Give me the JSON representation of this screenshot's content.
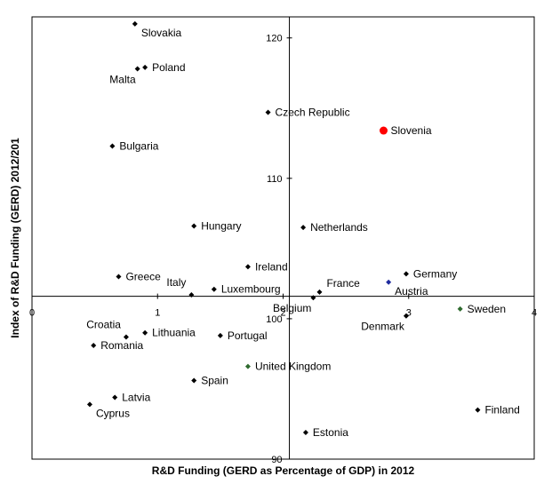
{
  "chart_data": {
    "type": "scatter",
    "title": "",
    "xlabel": "R&D Funding (GERD as Percentage of GDP) in 2012",
    "ylabel": "Index of R&D Funding (GERD) 2012/201",
    "xlim": [
      0,
      4
    ],
    "ylim": [
      90,
      121.5
    ],
    "x_ticks": [
      "0",
      "1",
      "2",
      "3",
      "4"
    ],
    "y_ticks": [
      "90",
      "100",
      "110",
      "120"
    ],
    "x_tick_values": [
      0,
      1,
      2,
      3,
      4
    ],
    "y_tick_values": [
      90,
      100,
      110,
      120
    ],
    "x_axis_crosses_y": 101.6,
    "y_axis_crosses_x": 2.05,
    "grid": false,
    "points": [
      {
        "label": "Slovakia",
        "x": 0.82,
        "y": 121.0,
        "color": "#000000",
        "label_pos": "below-right"
      },
      {
        "label": "Malta",
        "x": 0.84,
        "y": 117.8,
        "color": "#000000",
        "label_pos": "below-left"
      },
      {
        "label": "Poland",
        "x": 0.9,
        "y": 117.9,
        "color": "#000000",
        "label_pos": "right"
      },
      {
        "label": "Czech Republic",
        "x": 1.88,
        "y": 114.7,
        "color": "#000000",
        "label_pos": "right"
      },
      {
        "label": "Slovenia",
        "x": 2.8,
        "y": 113.4,
        "color": "#ff0000",
        "label_pos": "right",
        "highlight": true
      },
      {
        "label": "Bulgaria",
        "x": 0.64,
        "y": 112.3,
        "color": "#000000",
        "label_pos": "right"
      },
      {
        "label": "Hungary",
        "x": 1.29,
        "y": 106.6,
        "color": "#000000",
        "label_pos": "right"
      },
      {
        "label": "Netherlands",
        "x": 2.16,
        "y": 106.5,
        "color": "#000000",
        "label_pos": "right"
      },
      {
        "label": "Ireland",
        "x": 1.72,
        "y": 103.7,
        "color": "#000000",
        "label_pos": "right"
      },
      {
        "label": "Germany",
        "x": 2.98,
        "y": 103.2,
        "color": "#000000",
        "label_pos": "right"
      },
      {
        "label": "Greece",
        "x": 0.69,
        "y": 103.0,
        "color": "#000000",
        "label_pos": "right"
      },
      {
        "label": "Austria",
        "x": 2.84,
        "y": 102.6,
        "color": "#1f2b9e",
        "label_pos": "below-right"
      },
      {
        "label": "Luxembourg",
        "x": 1.45,
        "y": 102.1,
        "color": "#000000",
        "label_pos": "right"
      },
      {
        "label": "France",
        "x": 2.29,
        "y": 101.9,
        "color": "#000000",
        "label_pos": "above-right"
      },
      {
        "label": "Italy",
        "x": 1.27,
        "y": 101.7,
        "color": "#000000",
        "label_pos": "above-left"
      },
      {
        "label": "Belgium",
        "x": 2.24,
        "y": 101.5,
        "color": "#000000",
        "label_pos": "below-left"
      },
      {
        "label": "Sweden",
        "x": 3.41,
        "y": 100.7,
        "color": "#2e6b2e",
        "label_pos": "right"
      },
      {
        "label": "Denmark",
        "x": 2.98,
        "y": 100.2,
        "color": "#000000",
        "label_pos": "below-left"
      },
      {
        "label": "Croatia",
        "x": 0.75,
        "y": 98.7,
        "color": "#000000",
        "label_pos": "above-left"
      },
      {
        "label": "Lithuania",
        "x": 0.9,
        "y": 99.0,
        "color": "#000000",
        "label_pos": "right"
      },
      {
        "label": "Portugal",
        "x": 1.5,
        "y": 98.8,
        "color": "#000000",
        "label_pos": "right"
      },
      {
        "label": "Romania",
        "x": 0.49,
        "y": 98.1,
        "color": "#000000",
        "label_pos": "right"
      },
      {
        "label": "United Kingdom",
        "x": 1.72,
        "y": 96.6,
        "color": "#2e6b2e",
        "label_pos": "right"
      },
      {
        "label": "Spain",
        "x": 1.29,
        "y": 95.6,
        "color": "#000000",
        "label_pos": "right"
      },
      {
        "label": "Latvia",
        "x": 0.66,
        "y": 94.4,
        "color": "#000000",
        "label_pos": "right"
      },
      {
        "label": "Cyprus",
        "x": 0.46,
        "y": 93.9,
        "color": "#000000",
        "label_pos": "below-right"
      },
      {
        "label": "Finland",
        "x": 3.55,
        "y": 93.5,
        "color": "#000000",
        "label_pos": "right"
      },
      {
        "label": "Estonia",
        "x": 2.18,
        "y": 91.9,
        "color": "#000000",
        "label_pos": "right"
      }
    ]
  }
}
